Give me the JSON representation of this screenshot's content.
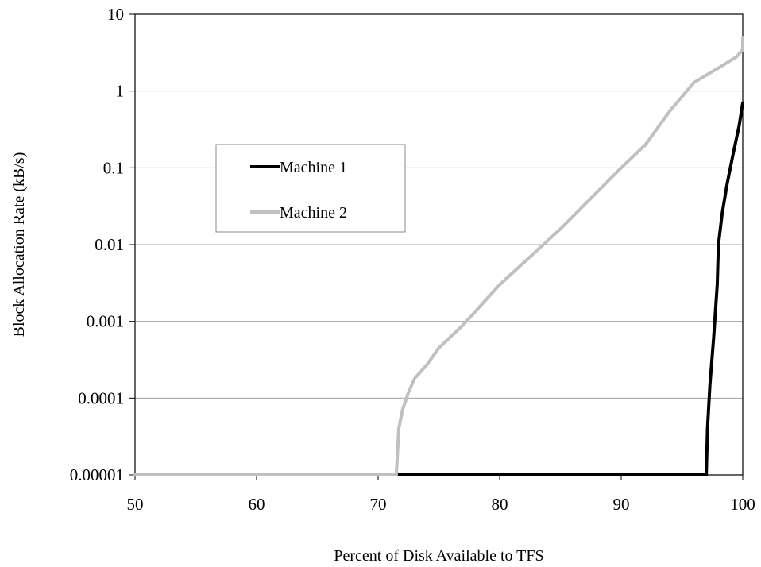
{
  "chart_data": {
    "type": "line",
    "title": "",
    "xlabel": "Percent of Disk Available to TFS",
    "ylabel": "Block Allocation Rate (kB/s)",
    "xlim": [
      50,
      100
    ],
    "ylim": [
      1e-05,
      10
    ],
    "y_scale": "log",
    "grid": "horizontal",
    "legend_position": "left-middle, inside plot",
    "x_ticks": [
      "50",
      "60",
      "70",
      "80",
      "90",
      "100"
    ],
    "y_ticks": [
      "0.00001",
      "0.0001",
      "0.001",
      "0.01",
      "0.1",
      "1",
      "10"
    ],
    "series": [
      {
        "name": "Machine 1",
        "color": "#000000",
        "points": [
          [
            50,
            1e-05
          ],
          [
            97,
            1e-05
          ],
          [
            97.1,
            4e-05
          ],
          [
            97.3,
            0.00015
          ],
          [
            97.6,
            0.0006
          ],
          [
            97.9,
            0.003
          ],
          [
            98.0,
            0.01
          ],
          [
            98.3,
            0.025
          ],
          [
            98.7,
            0.06
          ],
          [
            99.2,
            0.15
          ],
          [
            99.7,
            0.35
          ],
          [
            100,
            0.7
          ]
        ]
      },
      {
        "name": "Machine 2",
        "color": "#c0c0c0",
        "points": [
          [
            50,
            1e-05
          ],
          [
            71.5,
            1e-05
          ],
          [
            71.7,
            4e-05
          ],
          [
            72,
            7e-05
          ],
          [
            72.5,
            0.00012
          ],
          [
            73,
            0.00018
          ],
          [
            74,
            0.00027
          ],
          [
            75,
            0.00045
          ],
          [
            77,
            0.0009
          ],
          [
            80,
            0.003
          ],
          [
            85,
            0.016
          ],
          [
            90,
            0.1
          ],
          [
            92,
            0.2
          ],
          [
            94,
            0.55
          ],
          [
            96,
            1.3
          ],
          [
            98,
            2.0
          ],
          [
            99.5,
            2.8
          ],
          [
            100,
            3.5
          ],
          [
            100,
            5.0
          ]
        ]
      }
    ]
  }
}
